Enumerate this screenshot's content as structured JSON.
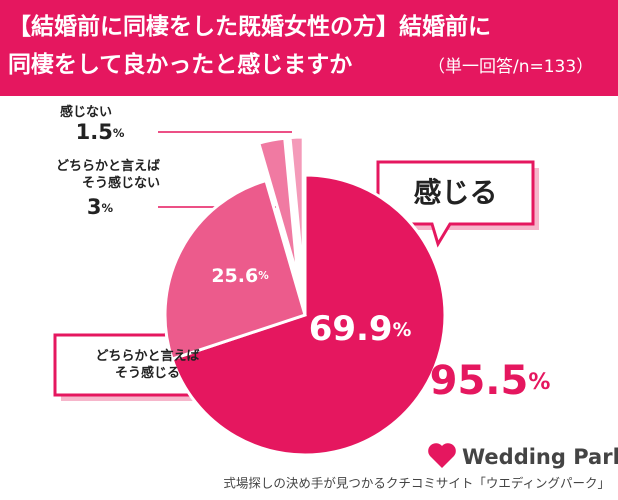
{
  "chart_data": {
    "type": "pie",
    "title": "【結婚前に同棲をした既婚女性の方】結婚前に\n同棲をして良かったと感じますか",
    "subtitle": "（単一回答/n=133）",
    "categories": [
      "感じる",
      "どちらかと言えば\nそう感じる",
      "どちらかと言えば\nそう感じない",
      "感じない"
    ],
    "values": [
      69.9,
      25.6,
      3.0,
      1.5
    ],
    "colors": [
      "#e5175f",
      "#ec5b8c",
      "#f07aa2",
      "#f49ab9"
    ],
    "unit": "%",
    "combined_total": 95.5,
    "brand": "Wedding Park",
    "footer": "式場探しの決め手が見つかるクチコミサイト「ウエディングパーク」"
  }
}
